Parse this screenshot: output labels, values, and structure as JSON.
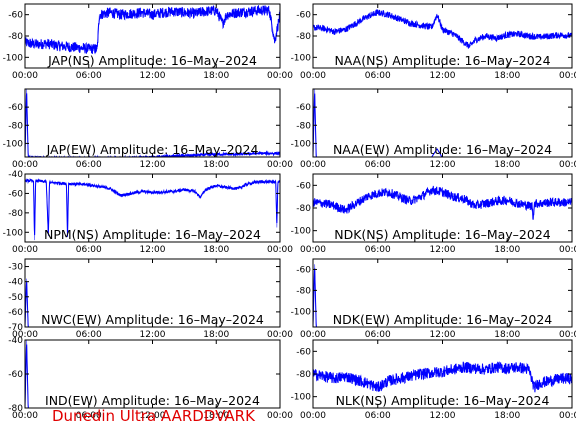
{
  "footer": "Dunedin Ultra AARDDVARK",
  "colors": {
    "line": "#0000ff",
    "axis": "#000000",
    "footer": "#e00000",
    "background": "#ffffff"
  },
  "chart_data": [
    {
      "type": "line",
      "title": "JAP(NS) Amplitude: 16–May–2024",
      "xticks": [
        "00:00",
        "06:00",
        "12:00",
        "18:00",
        "00:00"
      ],
      "xlim": [
        0,
        24
      ],
      "yticks": [
        -100,
        -80,
        -60
      ],
      "ylim": [
        -110,
        -50
      ],
      "x": [
        0,
        1,
        2,
        3,
        4,
        5,
        6,
        6.8,
        7.0,
        8,
        9,
        10,
        11,
        12,
        13,
        14,
        15,
        16,
        17,
        18,
        18.6,
        18.8,
        19,
        20,
        21,
        22,
        23,
        23.5,
        24
      ],
      "values": [
        -86,
        -88,
        -87,
        -89,
        -90,
        -91,
        -92,
        -92,
        -60,
        -58,
        -60,
        -59,
        -58,
        -60,
        -58,
        -57,
        -58,
        -59,
        -57,
        -56,
        -68,
        -64,
        -60,
        -58,
        -57,
        -56,
        -56,
        -85,
        -60
      ],
      "noise": 5
    },
    {
      "type": "line",
      "title": "NAA(NS) Amplitude: 16–May–2024",
      "xticks": [
        "00:00",
        "06:00",
        "12:00",
        "18:00",
        "00:00"
      ],
      "xlim": [
        0,
        24
      ],
      "yticks": [
        -100,
        -80,
        -60
      ],
      "ylim": [
        -110,
        -50
      ],
      "x": [
        0,
        1,
        2,
        3,
        4,
        5,
        6,
        7,
        8,
        9,
        10,
        11,
        11.5,
        12,
        13,
        14,
        14.5,
        15,
        16,
        17,
        18,
        19,
        20,
        21,
        22,
        23,
        24
      ],
      "values": [
        -72,
        -73,
        -76,
        -74,
        -68,
        -62,
        -58,
        -60,
        -64,
        -68,
        -70,
        -72,
        -60,
        -74,
        -78,
        -86,
        -90,
        -84,
        -80,
        -82,
        -79,
        -78,
        -80,
        -81,
        -80,
        -79,
        -80
      ],
      "noise": 3
    },
    {
      "type": "line",
      "title": "JAP(EW) Amplitude: 16–May–2024",
      "xticks": [
        "00:00",
        "06:00",
        "12:00",
        "18:00",
        "00:00"
      ],
      "xlim": [
        0,
        24
      ],
      "yticks": [
        -100,
        -80,
        -60
      ],
      "ylim": [
        -115,
        -40
      ],
      "x": [
        0,
        0.15,
        0.3,
        2,
        4,
        6,
        8,
        10,
        12,
        14,
        16,
        18,
        20,
        22,
        24
      ],
      "values": [
        -115,
        -40,
        -115,
        -116,
        -116,
        -116,
        -116,
        -116,
        -115,
        -114,
        -113,
        -112,
        -112,
        -111,
        -111
      ],
      "noise": 1.5
    },
    {
      "type": "line",
      "title": "NAA(EW) Amplitude: 16–May–2024",
      "xticks": [
        "00:00",
        "06:00",
        "12:00",
        "18:00",
        "00:00"
      ],
      "xlim": [
        0,
        24
      ],
      "yticks": [
        -100,
        -80,
        -60
      ],
      "ylim": [
        -115,
        -40
      ],
      "x": [
        0,
        0.15,
        0.3,
        2,
        4,
        6,
        8,
        10,
        11,
        11.5,
        12,
        14,
        16,
        18,
        20,
        22,
        24
      ],
      "values": [
        -115,
        -40,
        -116,
        -116,
        -116,
        -116,
        -116,
        -116,
        -115,
        -106,
        -116,
        -116,
        -116,
        -116,
        -116,
        -116,
        -116
      ],
      "noise": 0
    },
    {
      "type": "line",
      "title": "NPM(NS) Amplitude: 16–May–2024",
      "xticks": [
        "00:00",
        "06:00",
        "12:00",
        "18:00",
        "00:00"
      ],
      "xlim": [
        0,
        24
      ],
      "yticks": [
        -100,
        -80,
        -60,
        -40
      ],
      "ylim": [
        -110,
        -40
      ],
      "x": [
        0,
        0.8,
        0.9,
        1.0,
        2,
        2.2,
        2.3,
        3,
        3.9,
        4.0,
        4.1,
        6,
        8,
        9,
        10,
        11,
        12,
        14,
        15,
        16,
        16.5,
        17,
        18,
        19,
        20,
        21,
        22,
        23,
        23.6,
        23.7,
        23.8,
        24
      ],
      "values": [
        -47,
        -47,
        -108,
        -47,
        -48,
        -104,
        -49,
        -49,
        -50,
        -105,
        -50,
        -51,
        -55,
        -62,
        -60,
        -58,
        -59,
        -58,
        -56,
        -58,
        -64,
        -56,
        -52,
        -54,
        -55,
        -50,
        -48,
        -48,
        -48,
        -95,
        -48,
        -48
      ],
      "noise": 1.5
    },
    {
      "type": "line",
      "title": "NDK(NS) Amplitude: 16–May–2024",
      "xticks": [
        "00:00",
        "06:00",
        "12:00",
        "18:00",
        "00:00"
      ],
      "xlim": [
        0,
        24
      ],
      "yticks": [
        -100,
        -80,
        -60
      ],
      "ylim": [
        -110,
        -50
      ],
      "x": [
        0,
        1,
        2,
        3,
        4,
        5,
        6,
        7,
        8,
        9,
        10,
        11,
        12,
        13,
        14,
        15,
        16,
        17,
        18,
        19,
        20,
        20.3,
        20.4,
        20.5,
        21,
        22,
        23,
        24
      ],
      "values": [
        -75,
        -76,
        -78,
        -82,
        -76,
        -70,
        -67,
        -66,
        -70,
        -74,
        -70,
        -64,
        -66,
        -70,
        -72,
        -78,
        -76,
        -74,
        -73,
        -76,
        -78,
        -78,
        -90,
        -76,
        -76,
        -75,
        -75,
        -75
      ],
      "noise": 4
    },
    {
      "type": "line",
      "title": "NWC(EW) Amplitude: 16–May–2024",
      "xticks": [
        "00:00",
        "06:00",
        "12:00",
        "18:00",
        "00:00"
      ],
      "xlim": [
        0,
        24
      ],
      "yticks": [
        -70,
        -60,
        -50,
        -40,
        -30
      ],
      "ylim": [
        -70,
        -25
      ],
      "x": [
        0,
        0.15,
        0.3
      ],
      "values": [
        -70,
        -38,
        -70
      ],
      "noise": 0
    },
    {
      "type": "line",
      "title": "NDK(EW) Amplitude: 16–May–2024",
      "xticks": [
        "00:00",
        "06:00",
        "12:00",
        "18:00",
        "00:00"
      ],
      "xlim": [
        0,
        24
      ],
      "yticks": [
        -100,
        -80,
        -60
      ],
      "ylim": [
        -115,
        -50
      ],
      "x": [
        0,
        0.15,
        0.3
      ],
      "values": [
        -115,
        -55,
        -115
      ],
      "noise": 0
    },
    {
      "type": "line",
      "title": "IND(EW) Amplitude: 16–May–2024",
      "xticks": [
        "00:00",
        "06:00",
        "12:00",
        "18:00",
        "00:00"
      ],
      "xlim": [
        0,
        24
      ],
      "yticks": [
        -80,
        -60,
        -40
      ],
      "ylim": [
        -80,
        -40
      ],
      "x": [
        0,
        0.15,
        0.3
      ],
      "values": [
        -80,
        -40,
        -80
      ],
      "noise": 0
    },
    {
      "type": "line",
      "title": "NLK(NS) Amplitude: 16–May–2024",
      "xticks": [
        "00:00",
        "06:00",
        "12:00",
        "18:00",
        "00:00"
      ],
      "xlim": [
        0,
        24
      ],
      "yticks": [
        -100,
        -80,
        -60
      ],
      "ylim": [
        -110,
        -50
      ],
      "x": [
        0,
        1,
        2,
        3,
        4,
        5,
        6,
        7,
        8,
        9,
        10,
        11,
        12,
        13,
        14,
        15,
        16,
        17,
        18,
        19,
        20,
        20.5,
        21,
        22,
        23,
        24
      ],
      "values": [
        -80,
        -82,
        -84,
        -82,
        -85,
        -88,
        -92,
        -86,
        -84,
        -82,
        -80,
        -79,
        -78,
        -76,
        -74,
        -75,
        -76,
        -74,
        -75,
        -74,
        -76,
        -92,
        -88,
        -86,
        -84,
        -84
      ],
      "noise": 5
    }
  ]
}
